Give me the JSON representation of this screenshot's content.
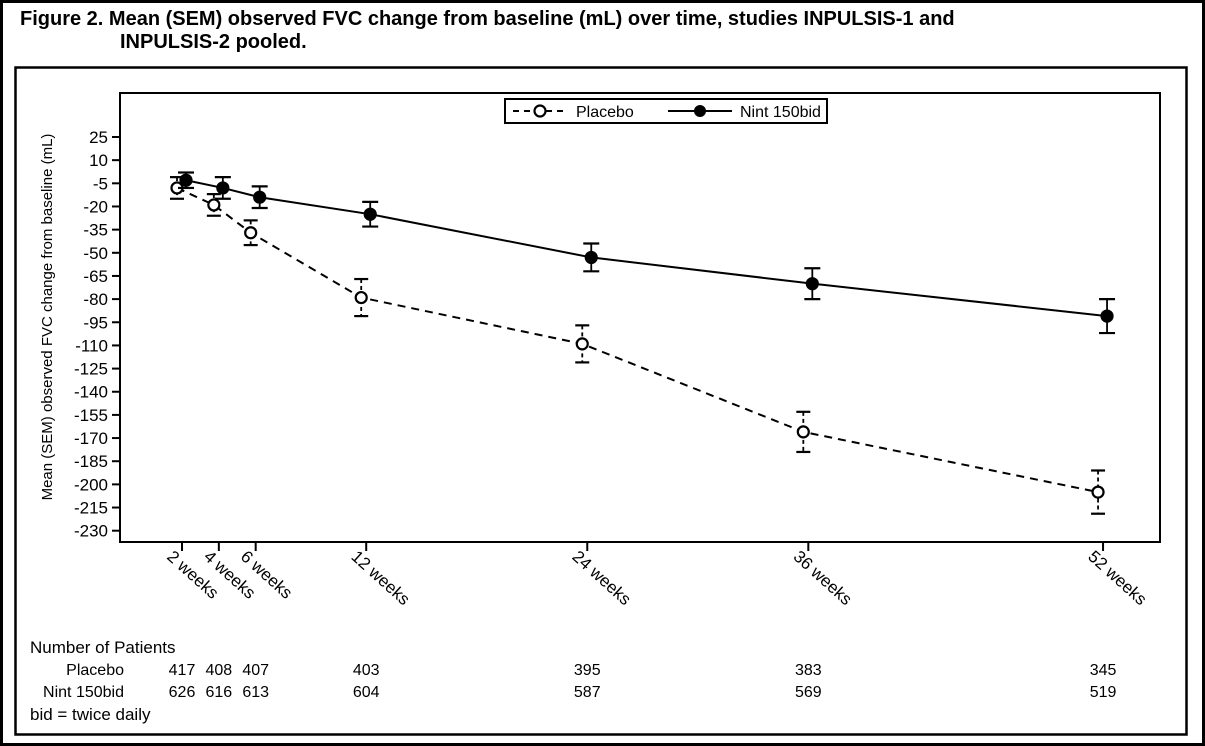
{
  "figure": {
    "title_line1": "Figure 2. Mean (SEM) observed FVC change from baseline (mL) over time, studies INPULSIS-1 and",
    "title_line2": "INPULSIS-2 pooled."
  },
  "chart_data": {
    "type": "line",
    "x_weeks": [
      2,
      4,
      6,
      12,
      24,
      36,
      52
    ],
    "x_tick_labels": [
      "2 weeks",
      "4 weeks",
      "6 weeks",
      "12 weeks",
      "24 weeks",
      "36 weeks",
      "52 weeks"
    ],
    "ylabel": "Mean (SEM) observed FVC change from baseline (mL)",
    "ylim": [
      -230,
      25
    ],
    "y_ticks": [
      25,
      10,
      -5,
      -20,
      -35,
      -50,
      -65,
      -80,
      -95,
      -110,
      -125,
      -140,
      -155,
      -170,
      -185,
      -200,
      -215,
      -230
    ],
    "grid": false,
    "legend_position": "top-center",
    "series": [
      {
        "name": "Placebo",
        "line_style": "dashed",
        "marker": "open-circle",
        "color": "#000000",
        "values": [
          -8,
          -19,
          -37,
          -79,
          -109,
          -166,
          -205
        ],
        "sem": [
          7,
          7,
          8,
          12,
          12,
          13,
          14
        ]
      },
      {
        "name": "Nint 150bid",
        "line_style": "solid",
        "marker": "filled-circle",
        "color": "#000000",
        "values": [
          -3,
          -8,
          -14,
          -25,
          -53,
          -70,
          -91
        ],
        "sem": [
          5,
          7,
          7,
          8,
          9,
          10,
          11
        ]
      }
    ]
  },
  "patients_table": {
    "header": "Number of Patients",
    "rows": [
      {
        "label": "Placebo",
        "counts": [
          "417",
          "408",
          "407",
          "403",
          "395",
          "383",
          "345"
        ]
      },
      {
        "label": "Nint 150bid",
        "counts": [
          "626",
          "616",
          "613",
          "604",
          "587",
          "569",
          "519"
        ]
      }
    ],
    "footnote": "bid = twice daily"
  }
}
